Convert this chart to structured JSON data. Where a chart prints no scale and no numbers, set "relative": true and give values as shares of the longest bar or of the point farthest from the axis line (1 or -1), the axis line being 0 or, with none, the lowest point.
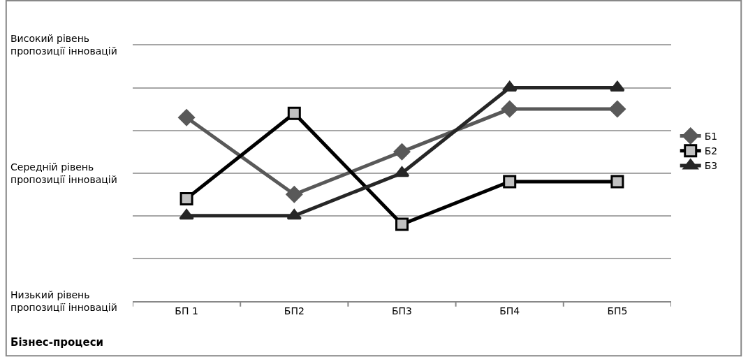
{
  "chart_data": {
    "type": "line",
    "relative": true,
    "xlabel": "Бізнес-процеси",
    "categories": [
      "БП 1",
      "БП2",
      "БП3",
      "БП4",
      "БП5"
    ],
    "series": [
      {
        "name": "Б1",
        "color": "#595959",
        "marker": "diamond",
        "values": [
          0.86,
          0.5,
          0.7,
          0.9,
          0.9
        ]
      },
      {
        "name": "Б2",
        "color": "#000000",
        "marker": "square",
        "values": [
          0.48,
          0.88,
          0.36,
          0.56,
          0.56
        ]
      },
      {
        "name": "Б3",
        "color": "#262626",
        "marker": "triangle",
        "values": [
          0.4,
          0.4,
          0.6,
          1,
          1
        ]
      }
    ],
    "annotations": [
      "Високий рівень\nпропозиції інновацій",
      "Середній рівень\nпропозиції інновацій",
      "Низький рівень\nпропозиції інновацій"
    ],
    "grid": "y",
    "legend": "right",
    "line_style": "solid"
  }
}
